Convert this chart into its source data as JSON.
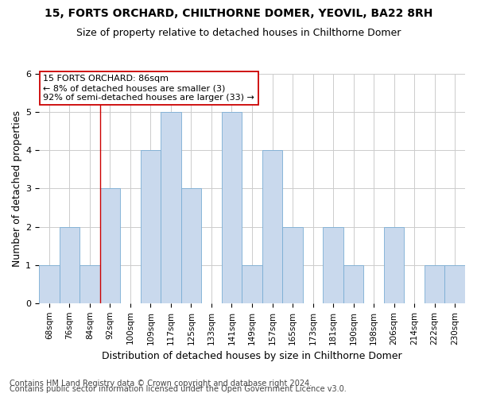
{
  "title_line1": "15, FORTS ORCHARD, CHILTHORNE DOMER, YEOVIL, BA22 8RH",
  "title_line2": "Size of property relative to detached houses in Chilthorne Domer",
  "xlabel": "Distribution of detached houses by size in Chilthorne Domer",
  "ylabel": "Number of detached properties",
  "categories": [
    "68sqm",
    "76sqm",
    "84sqm",
    "92sqm",
    "100sqm",
    "109sqm",
    "117sqm",
    "125sqm",
    "133sqm",
    "141sqm",
    "149sqm",
    "157sqm",
    "165sqm",
    "173sqm",
    "181sqm",
    "190sqm",
    "198sqm",
    "206sqm",
    "214sqm",
    "222sqm",
    "230sqm"
  ],
  "values": [
    1,
    2,
    1,
    3,
    0,
    4,
    5,
    3,
    0,
    5,
    1,
    4,
    2,
    0,
    2,
    1,
    0,
    2,
    0,
    1,
    1
  ],
  "bar_color": "#c9d9ed",
  "bar_edge_color": "#7aadd4",
  "red_line_x": 2.5,
  "annotation_line1": "15 FORTS ORCHARD: 86sqm",
  "annotation_line2": "← 8% of detached houses are smaller (3)",
  "annotation_line3": "92% of semi-detached houses are larger (33) →",
  "annotation_box_color": "#ffffff",
  "annotation_box_edge_color": "#cc0000",
  "ylim": [
    0,
    6
  ],
  "yticks": [
    0,
    1,
    2,
    3,
    4,
    5,
    6
  ],
  "footer_line1": "Contains HM Land Registry data © Crown copyright and database right 2024.",
  "footer_line2": "Contains public sector information licensed under the Open Government Licence v3.0.",
  "background_color": "#ffffff",
  "grid_color": "#cccccc",
  "title1_fontsize": 10,
  "title2_fontsize": 9,
  "xlabel_fontsize": 9,
  "ylabel_fontsize": 9,
  "tick_fontsize": 7.5,
  "annotation_fontsize": 8,
  "footer_fontsize": 7
}
